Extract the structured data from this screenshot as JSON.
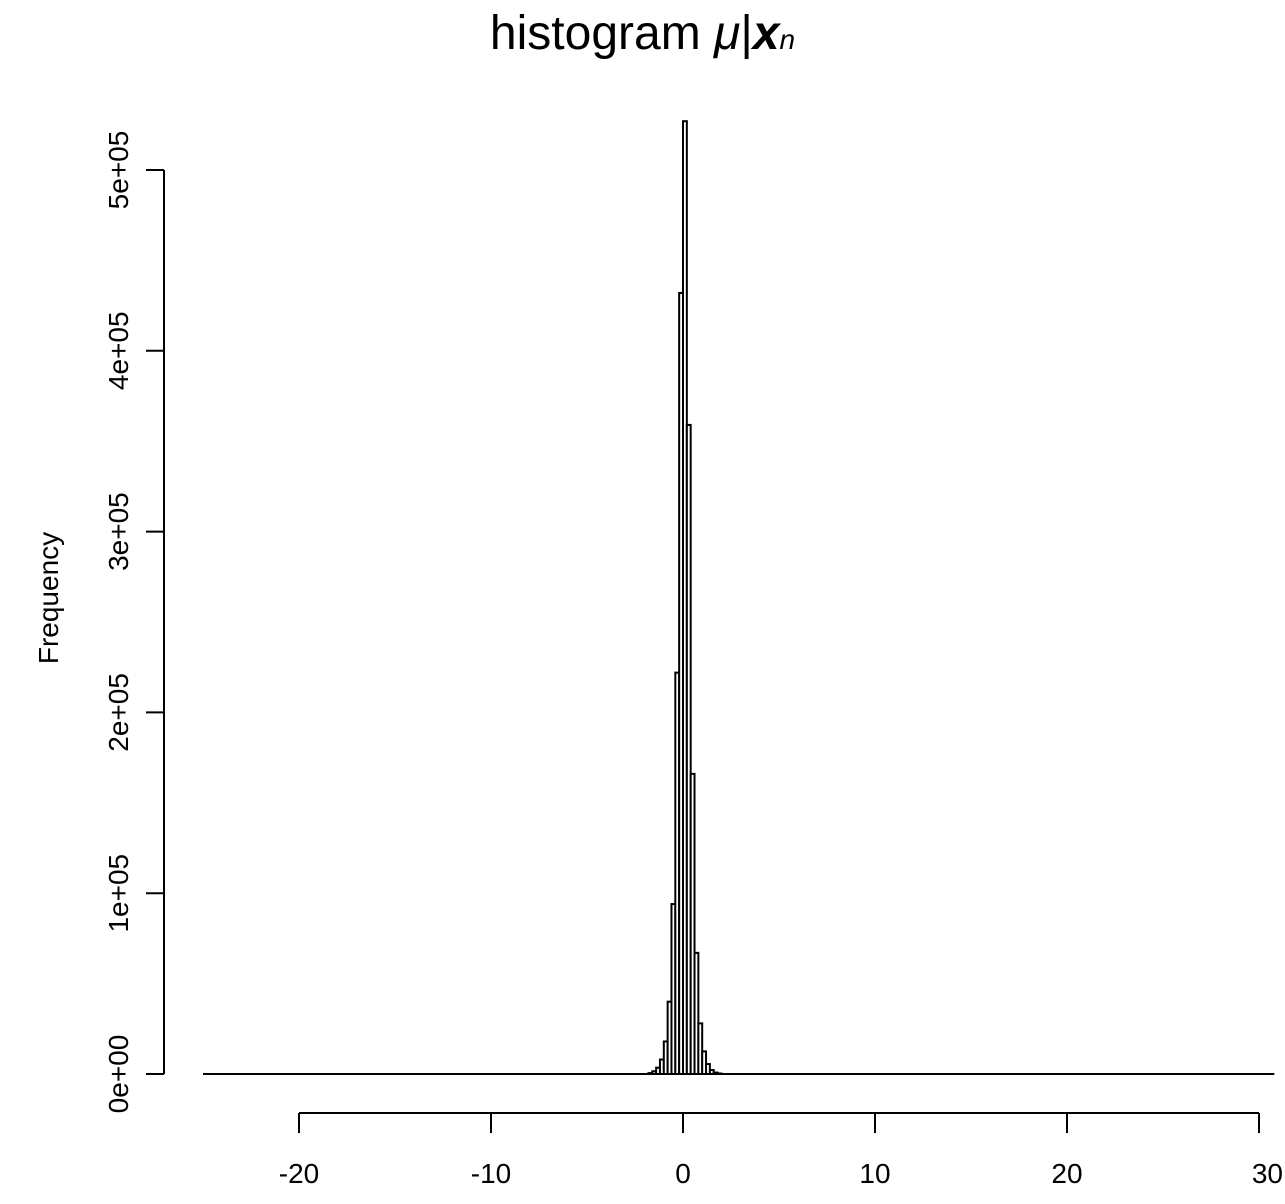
{
  "chart_data": {
    "type": "bar",
    "title": {
      "prefix": "histogram",
      "symbol": "μ",
      "separator": "|",
      "bold_var": "x",
      "subscript": "n"
    },
    "xlabel": "",
    "ylabel": "Frequency",
    "xlim": [
      -25,
      30.8
    ],
    "ylim": [
      0,
      530000
    ],
    "x_ticks": [
      -20,
      -10,
      0,
      10,
      20,
      30
    ],
    "x_tick_labels": [
      "-20",
      "-10",
      "0",
      "10",
      "20",
      "30"
    ],
    "y_ticks": [
      0,
      100000,
      200000,
      300000,
      400000,
      500000
    ],
    "y_tick_labels": [
      "0e+00",
      "1e+05",
      "2e+05",
      "3e+05",
      "4e+05",
      "5e+05"
    ],
    "bin_width": 0.2,
    "bins_from": -25,
    "bins_to": 30.8,
    "bars": [
      {
        "x0": -1.8,
        "x1": -1.6,
        "value": 500
      },
      {
        "x0": -1.6,
        "x1": -1.4,
        "value": 1500
      },
      {
        "x0": -1.4,
        "x1": -1.2,
        "value": 3500
      },
      {
        "x0": -1.2,
        "x1": -1.0,
        "value": 8000
      },
      {
        "x0": -1.0,
        "x1": -0.8,
        "value": 18000
      },
      {
        "x0": -0.8,
        "x1": -0.6,
        "value": 40000
      },
      {
        "x0": -0.6,
        "x1": -0.4,
        "value": 94000
      },
      {
        "x0": -0.4,
        "x1": -0.2,
        "value": 222000
      },
      {
        "x0": -0.2,
        "x1": 0.0,
        "value": 432000
      },
      {
        "x0": 0.0,
        "x1": 0.2,
        "value": 527000
      },
      {
        "x0": 0.2,
        "x1": 0.4,
        "value": 359000
      },
      {
        "x0": 0.4,
        "x1": 0.6,
        "value": 166000
      },
      {
        "x0": 0.6,
        "x1": 0.8,
        "value": 67000
      },
      {
        "x0": 0.8,
        "x1": 1.0,
        "value": 28000
      },
      {
        "x0": 1.0,
        "x1": 1.2,
        "value": 12500
      },
      {
        "x0": 1.2,
        "x1": 1.4,
        "value": 5500
      },
      {
        "x0": 1.4,
        "x1": 1.6,
        "value": 2200
      },
      {
        "x0": 1.6,
        "x1": 1.8,
        "value": 800
      },
      {
        "x0": 1.8,
        "x1": 2.0,
        "value": 300
      }
    ],
    "grid": false,
    "legend": "none",
    "colors": {
      "fill": "#ffffff",
      "stroke": "#000000"
    }
  }
}
